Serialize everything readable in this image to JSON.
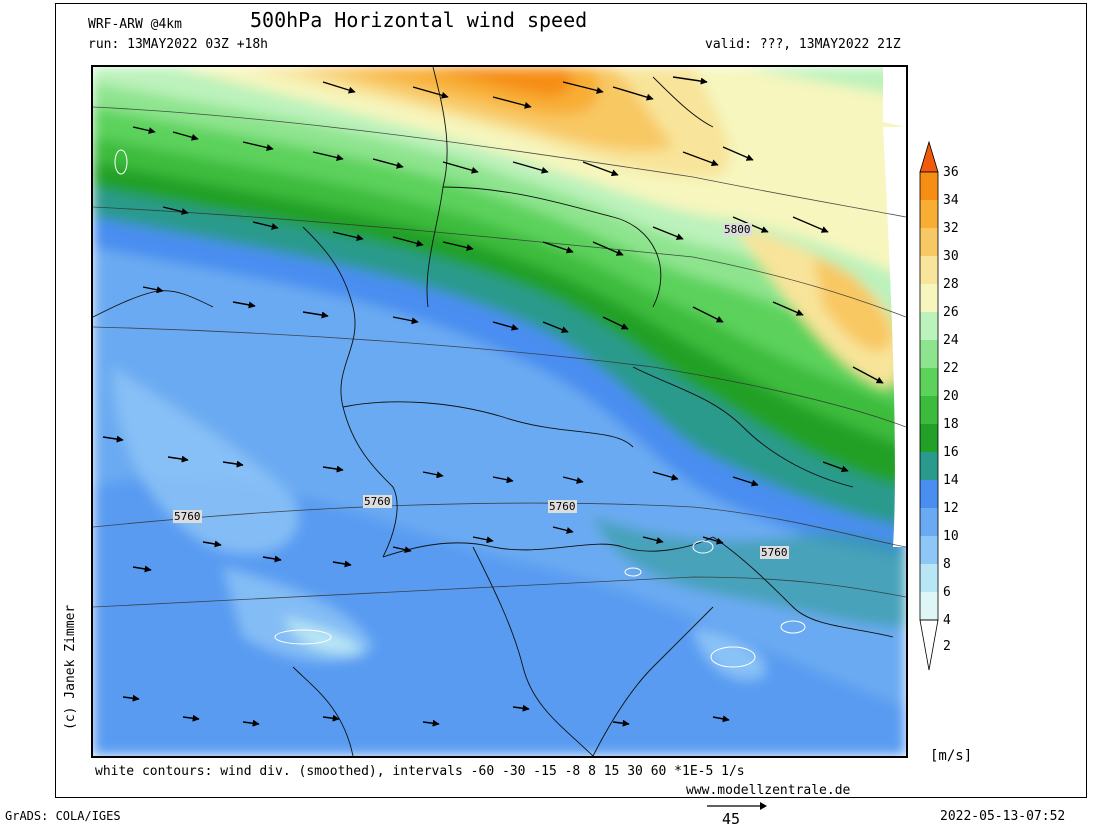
{
  "header": {
    "model": "WRF-ARW @4km",
    "title": "500hPa Horizontal wind speed",
    "run": "run: 13MAY2022 03Z +18h",
    "valid": "valid: ???, 13MAY2022 21Z"
  },
  "map": {
    "contour_labels": [
      "5800",
      "5760",
      "5760",
      "5760",
      "5760"
    ],
    "colors": {
      "c2": "#ffffff",
      "c4": "#dff6f6",
      "c6": "#b8e6f4",
      "c8": "#8ec6f6",
      "c10": "#6aaaf2",
      "c12": "#4a8ef0",
      "c14": "#2a9a8c",
      "c16": "#22a028",
      "c18": "#3cbc3c",
      "c20": "#5cd25c",
      "c22": "#8ee48e",
      "c24": "#bcf2bc",
      "c26": "#f6f6be",
      "c28": "#f8e49a",
      "c30": "#f8c864",
      "c32": "#f8ae34",
      "c34": "#f68e14",
      "c36": "#f05a0a"
    }
  },
  "colorbar": {
    "labels": [
      "36",
      "34",
      "32",
      "30",
      "28",
      "26",
      "24",
      "22",
      "20",
      "18",
      "16",
      "14",
      "12",
      "10",
      "8",
      "6",
      "4",
      "2"
    ],
    "unit": "[m/s]"
  },
  "footer": {
    "note": "white contours: wind div. (smoothed), intervals -60 -30 -15 -8 8 15 30 60 *1E-5 1/s",
    "website": "www.modellzentrale.de",
    "grads": "GrADS: COLA/IGES",
    "timestamp": "2022-05-13-07:52",
    "scale_value": "45",
    "credit": "(c) Janek Zimmer"
  }
}
